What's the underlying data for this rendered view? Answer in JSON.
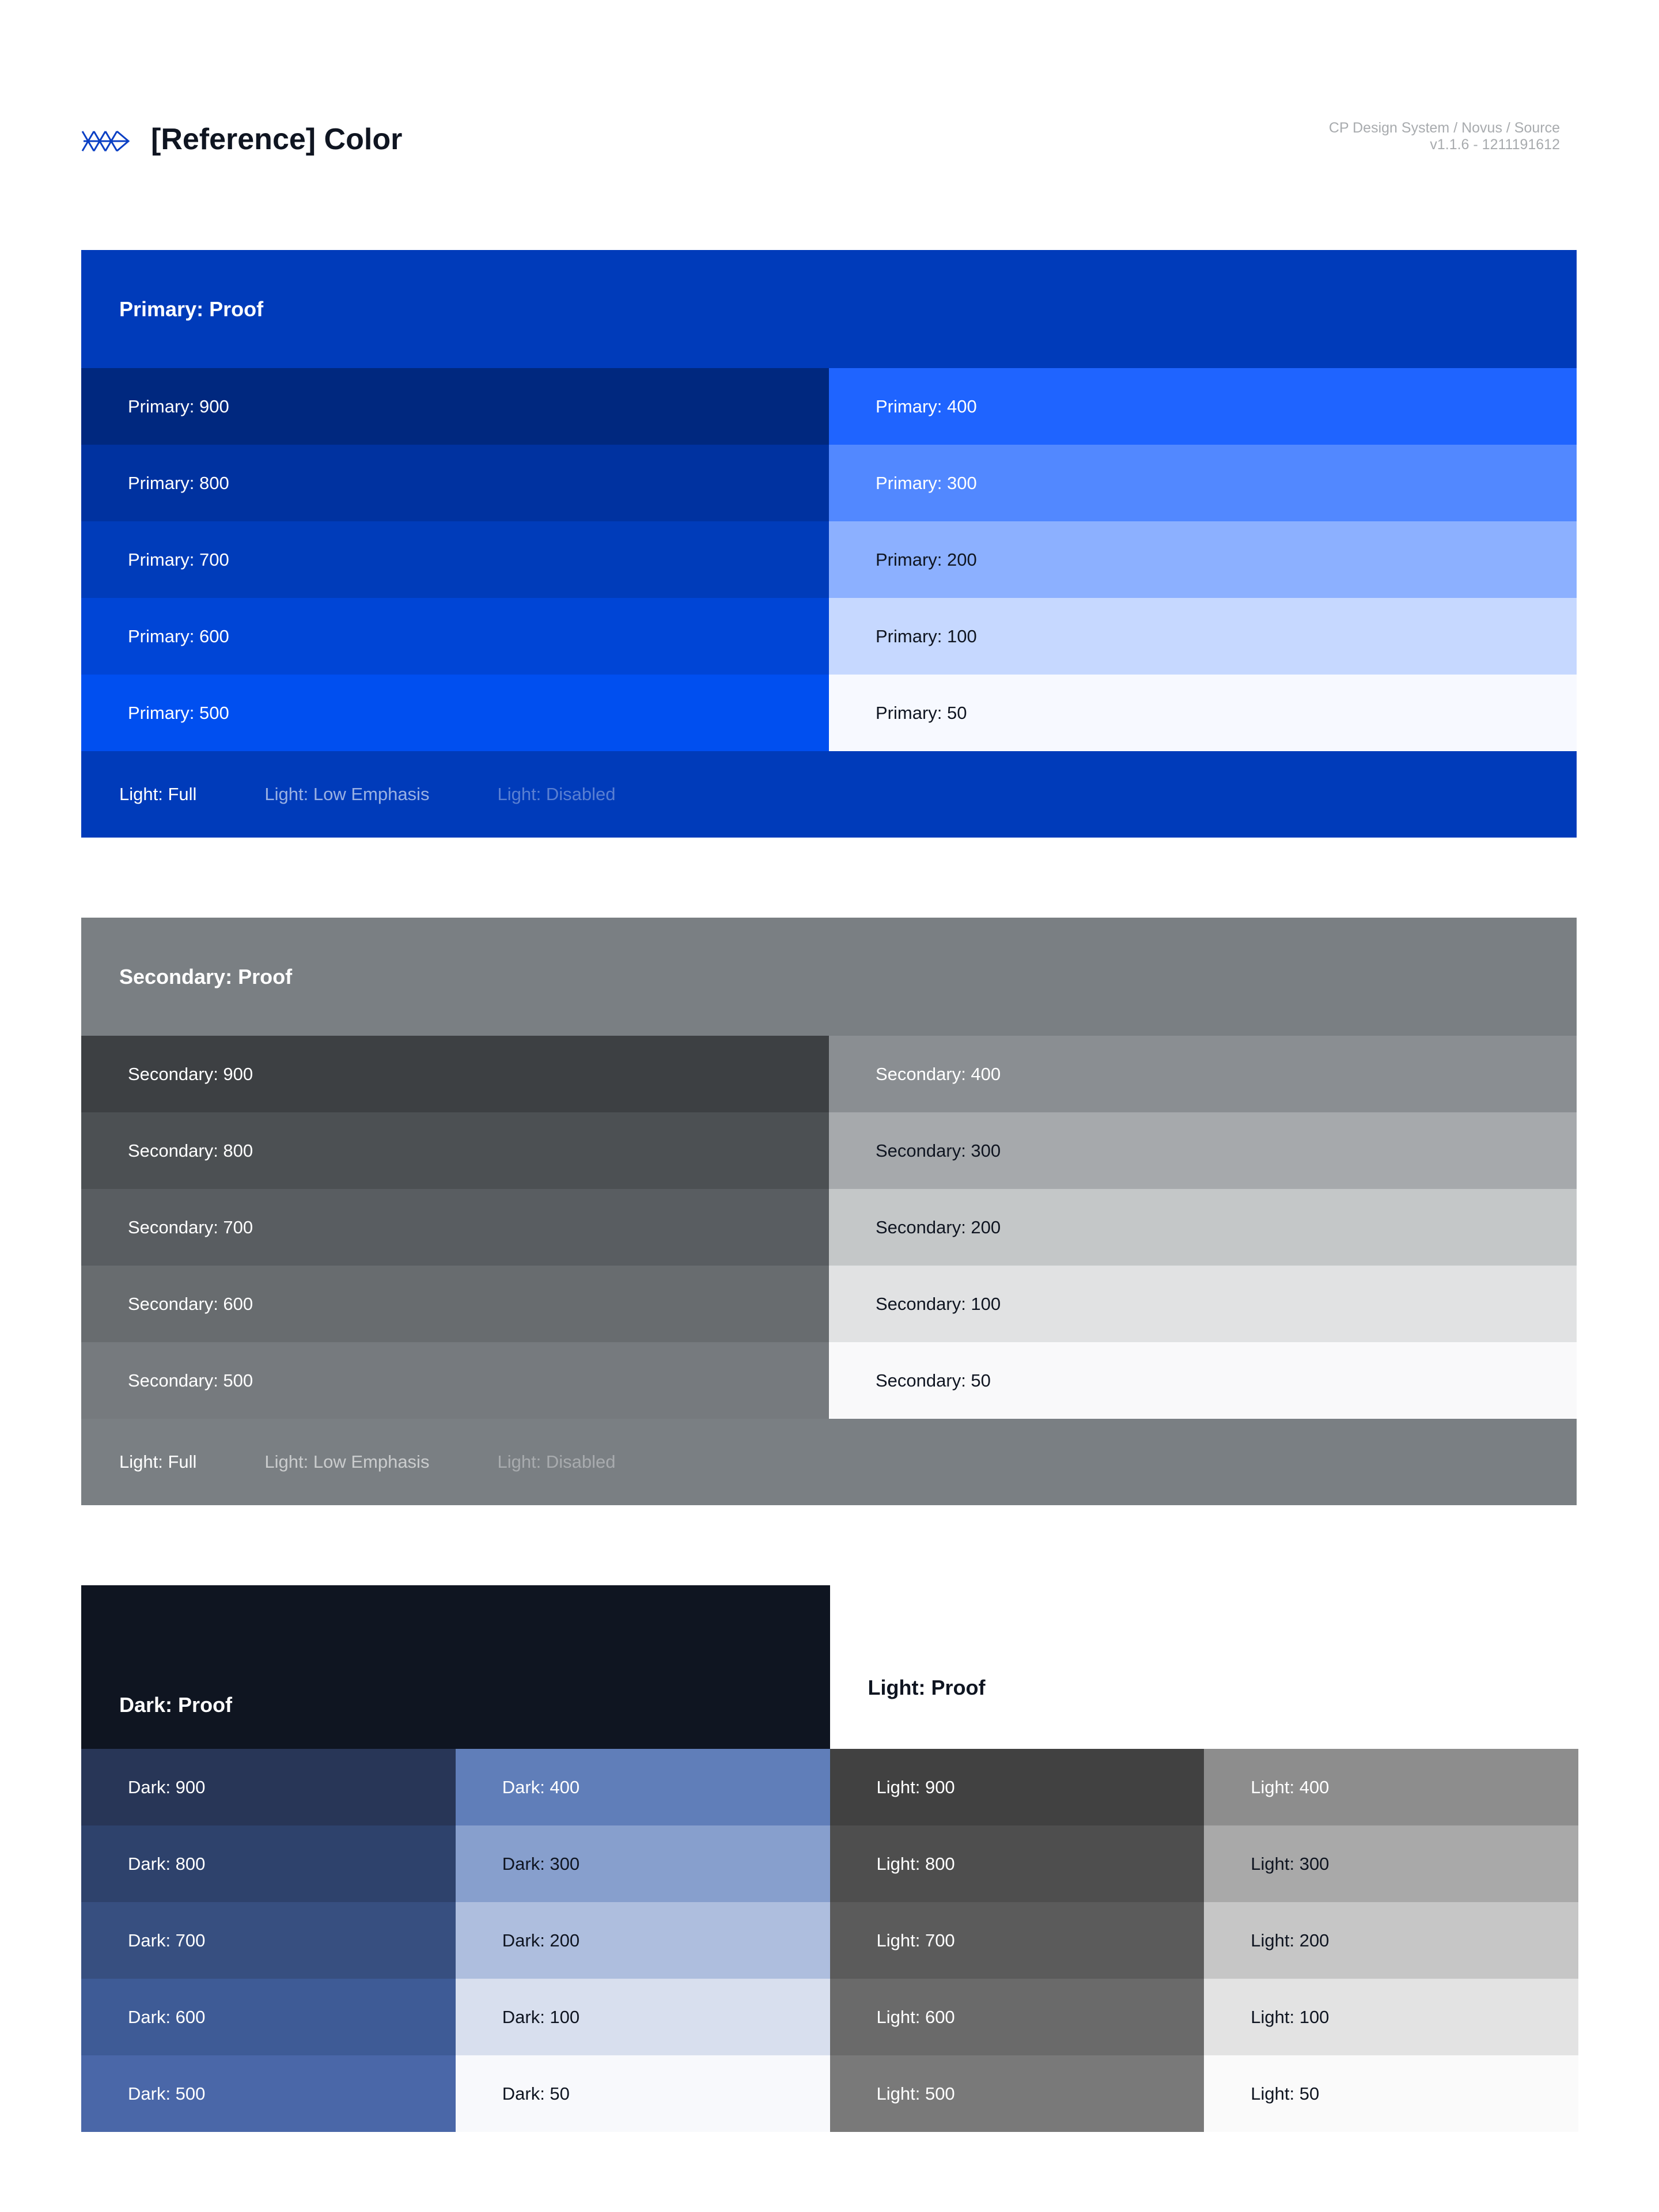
{
  "header": {
    "title": "[Reference] Color",
    "meta_line1": "CP Design System / Novus / Source",
    "meta_line2": "v1.1.6 - 1211191612",
    "logo_color": "#0a3fc4"
  },
  "footer_labels": {
    "full": "Light: Full",
    "low": "Light: Low Emphasis",
    "disabled": "Light: Disabled"
  },
  "primary": {
    "title": "Primary: Proof",
    "color": "#003bba",
    "left": [
      {
        "label": "Primary: 900",
        "color": "#00287f"
      },
      {
        "label": "Primary: 800",
        "color": "#0032a0"
      },
      {
        "label": "Primary: 700",
        "color": "#003cba"
      },
      {
        "label": "Primary: 600",
        "color": "#0045d6"
      },
      {
        "label": "Primary: 500",
        "color": "#004ff0"
      }
    ],
    "right": [
      {
        "label": "Primary: 400",
        "color": "#1f64ff"
      },
      {
        "label": "Primary: 300",
        "color": "#5288ff"
      },
      {
        "label": "Primary: 200",
        "color": "#8cb0ff"
      },
      {
        "label": "Primary: 100",
        "color": "#c6d8ff"
      },
      {
        "label": "Primary: 50",
        "color": "#f7f9ff"
      }
    ]
  },
  "secondary": {
    "title": "Secondary: Proof",
    "color": "#7a7f83",
    "left": [
      {
        "label": "Secondary: 900",
        "color": "#3d4043"
      },
      {
        "label": "Secondary: 800",
        "color": "#4c5053"
      },
      {
        "label": "Secondary: 700",
        "color": "#595d61"
      },
      {
        "label": "Secondary: 600",
        "color": "#686c6f"
      },
      {
        "label": "Secondary: 500",
        "color": "#767a7e"
      }
    ],
    "right": [
      {
        "label": "Secondary: 400",
        "color": "#8a8e92"
      },
      {
        "label": "Secondary: 300",
        "color": "#a6a9ac"
      },
      {
        "label": "Secondary: 200",
        "color": "#c4c7c8"
      },
      {
        "label": "Secondary: 100",
        "color": "#e1e2e3"
      },
      {
        "label": "Secondary: 50",
        "color": "#f9f9fa"
      }
    ]
  },
  "dark": {
    "title": "Dark: Proof",
    "color": "#0f1521",
    "left": [
      {
        "label": "Dark: 900",
        "color": "#283657"
      },
      {
        "label": "Dark: 800",
        "color": "#2e426c"
      },
      {
        "label": "Dark: 700",
        "color": "#374f80"
      },
      {
        "label": "Dark: 600",
        "color": "#3e5b96"
      },
      {
        "label": "Dark: 500",
        "color": "#4a67a8"
      }
    ],
    "right": [
      {
        "label": "Dark: 400",
        "color": "#607eb9"
      },
      {
        "label": "Dark: 300",
        "color": "#879fcd"
      },
      {
        "label": "Dark: 200",
        "color": "#aebede"
      },
      {
        "label": "Dark: 100",
        "color": "#d8dfee"
      },
      {
        "label": "Dark: 50",
        "color": "#f8f9fc"
      }
    ]
  },
  "light": {
    "title": "Light: Proof",
    "color": "#ffffff",
    "left": [
      {
        "label": "Light: 900",
        "color": "#414141"
      },
      {
        "label": "Light: 800",
        "color": "#4e4e4e"
      },
      {
        "label": "Light: 700",
        "color": "#5b5b5b"
      },
      {
        "label": "Light: 600",
        "color": "#6a6a6a"
      },
      {
        "label": "Light: 500",
        "color": "#797979"
      }
    ],
    "right": [
      {
        "label": "Light: 400",
        "color": "#8d8d8d"
      },
      {
        "label": "Light: 300",
        "color": "#a9a9a9"
      },
      {
        "label": "Light: 200",
        "color": "#c6c6c6"
      },
      {
        "label": "Light: 100",
        "color": "#e3e3e3"
      },
      {
        "label": "Light: 50",
        "color": "#fafafa"
      }
    ]
  }
}
